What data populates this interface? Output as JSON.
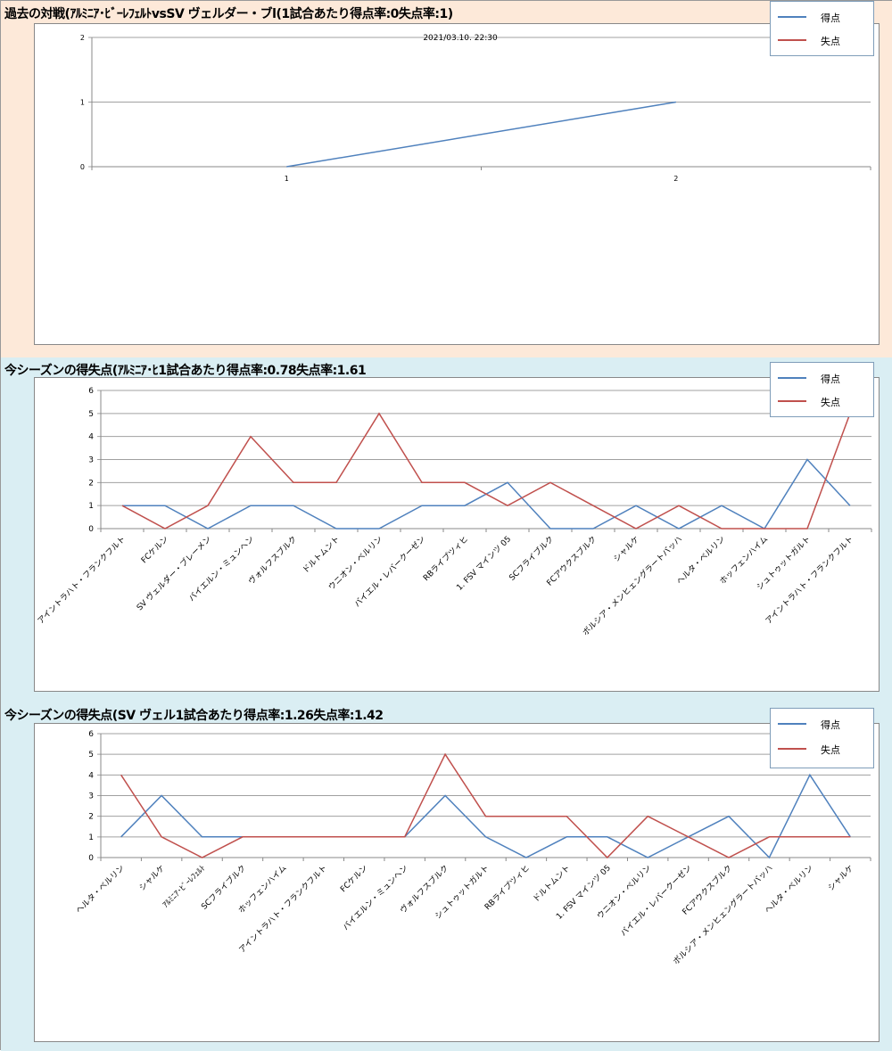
{
  "colors": {
    "scored": "#4f81bd",
    "conceded": "#c0504d",
    "grid": "#a0a0a0"
  },
  "chart_data": [
    {
      "type": "line",
      "title": "過去の対戦(ｱﾙﾐﾆｱ･ﾋﾞｰﾚﾌｪﾙﾄvsSV ヴェルダー・ブl(1試合あたり得点率:0失点率:1)",
      "subtitle": "2021/03.10. 22:30",
      "categories": [
        "1",
        "2"
      ],
      "ylim": [
        0,
        2
      ],
      "yticks": [
        "0",
        "1",
        "2"
      ],
      "series": [
        {
          "name": "得点",
          "values": [
            0,
            1
          ]
        },
        {
          "name": "失点",
          "values": [
            null,
            null
          ]
        }
      ],
      "legend": "top-right"
    },
    {
      "type": "line",
      "title": "今シーズンの得失点(ｱﾙﾐﾆｱ･ﾋ1試合あたり得点率:0.78失点率:1.61",
      "categories": [
        "アイントラハト・フランクフルト",
        "FCケルン",
        "SV ヴェルダー・ブレーメン",
        "バイエルン・ミュンヘン",
        "ヴォルフスブルク",
        "ドルトムント",
        "ウニオン・ベルリン",
        "バイエル・レバークーゼン",
        "RBライプツィヒ",
        "1. FSV マインツ 05",
        "SCフライブルク",
        "FCアウクスブルク",
        "シャルケ",
        "ボルシア・メンヒェングラートバッハ",
        "ヘルタ・ベルリン",
        "ホッフェンハイム",
        "シュトゥットガルト",
        "アイントラハト・フランクフルト"
      ],
      "ylim": [
        0,
        6
      ],
      "yticks": [
        "0",
        "1",
        "2",
        "3",
        "4",
        "5",
        "6"
      ],
      "series": [
        {
          "name": "得点",
          "values": [
            1,
            1,
            0,
            1,
            1,
            0,
            0,
            1,
            1,
            2,
            0,
            0,
            1,
            0,
            1,
            0,
            3,
            1
          ]
        },
        {
          "name": "失点",
          "values": [
            1,
            0,
            1,
            4,
            2,
            2,
            5,
            2,
            2,
            1,
            2,
            1,
            0,
            1,
            0,
            0,
            0,
            5
          ]
        }
      ],
      "legend": "top-right"
    },
    {
      "type": "line",
      "title": "今シーズンの得失点(SV ヴェル1試合あたり得点率:1.26失点率:1.42",
      "categories": [
        "ヘルタ・ベルリン",
        "シャルケ",
        "ｱﾙﾐﾆｱ･ﾋﾞｰﾚﾌｪﾙﾄ",
        "SCフライブルク",
        "ホッフェンハイム",
        "アイントラハト・フランクフルト",
        "FCケルン",
        "バイエルン・ミュンヘン",
        "ヴォルフスブルク",
        "シュトゥットガルト",
        "RBライプツィヒ",
        "ドルトムント",
        "1. FSV マインツ 05",
        "ウニオン・ベルリン",
        "バイエル・レバークーゼン",
        "FCアウクスブルク",
        "ボルシア・メンヒェングラートバッハ",
        "ヘルタ・ベルリン",
        "シャルケ"
      ],
      "ylim": [
        0,
        6
      ],
      "yticks": [
        "0",
        "1",
        "2",
        "3",
        "4",
        "5",
        "6"
      ],
      "series": [
        {
          "name": "得点",
          "values": [
            1,
            3,
            1,
            1,
            1,
            1,
            1,
            1,
            3,
            1,
            0,
            1,
            1,
            0,
            1,
            2,
            0,
            4,
            1
          ]
        },
        {
          "name": "失点",
          "values": [
            4,
            1,
            0,
            1,
            1,
            1,
            1,
            1,
            5,
            2,
            2,
            2,
            0,
            2,
            1,
            0,
            1,
            1,
            1
          ]
        }
      ],
      "legend": "top-right"
    }
  ]
}
